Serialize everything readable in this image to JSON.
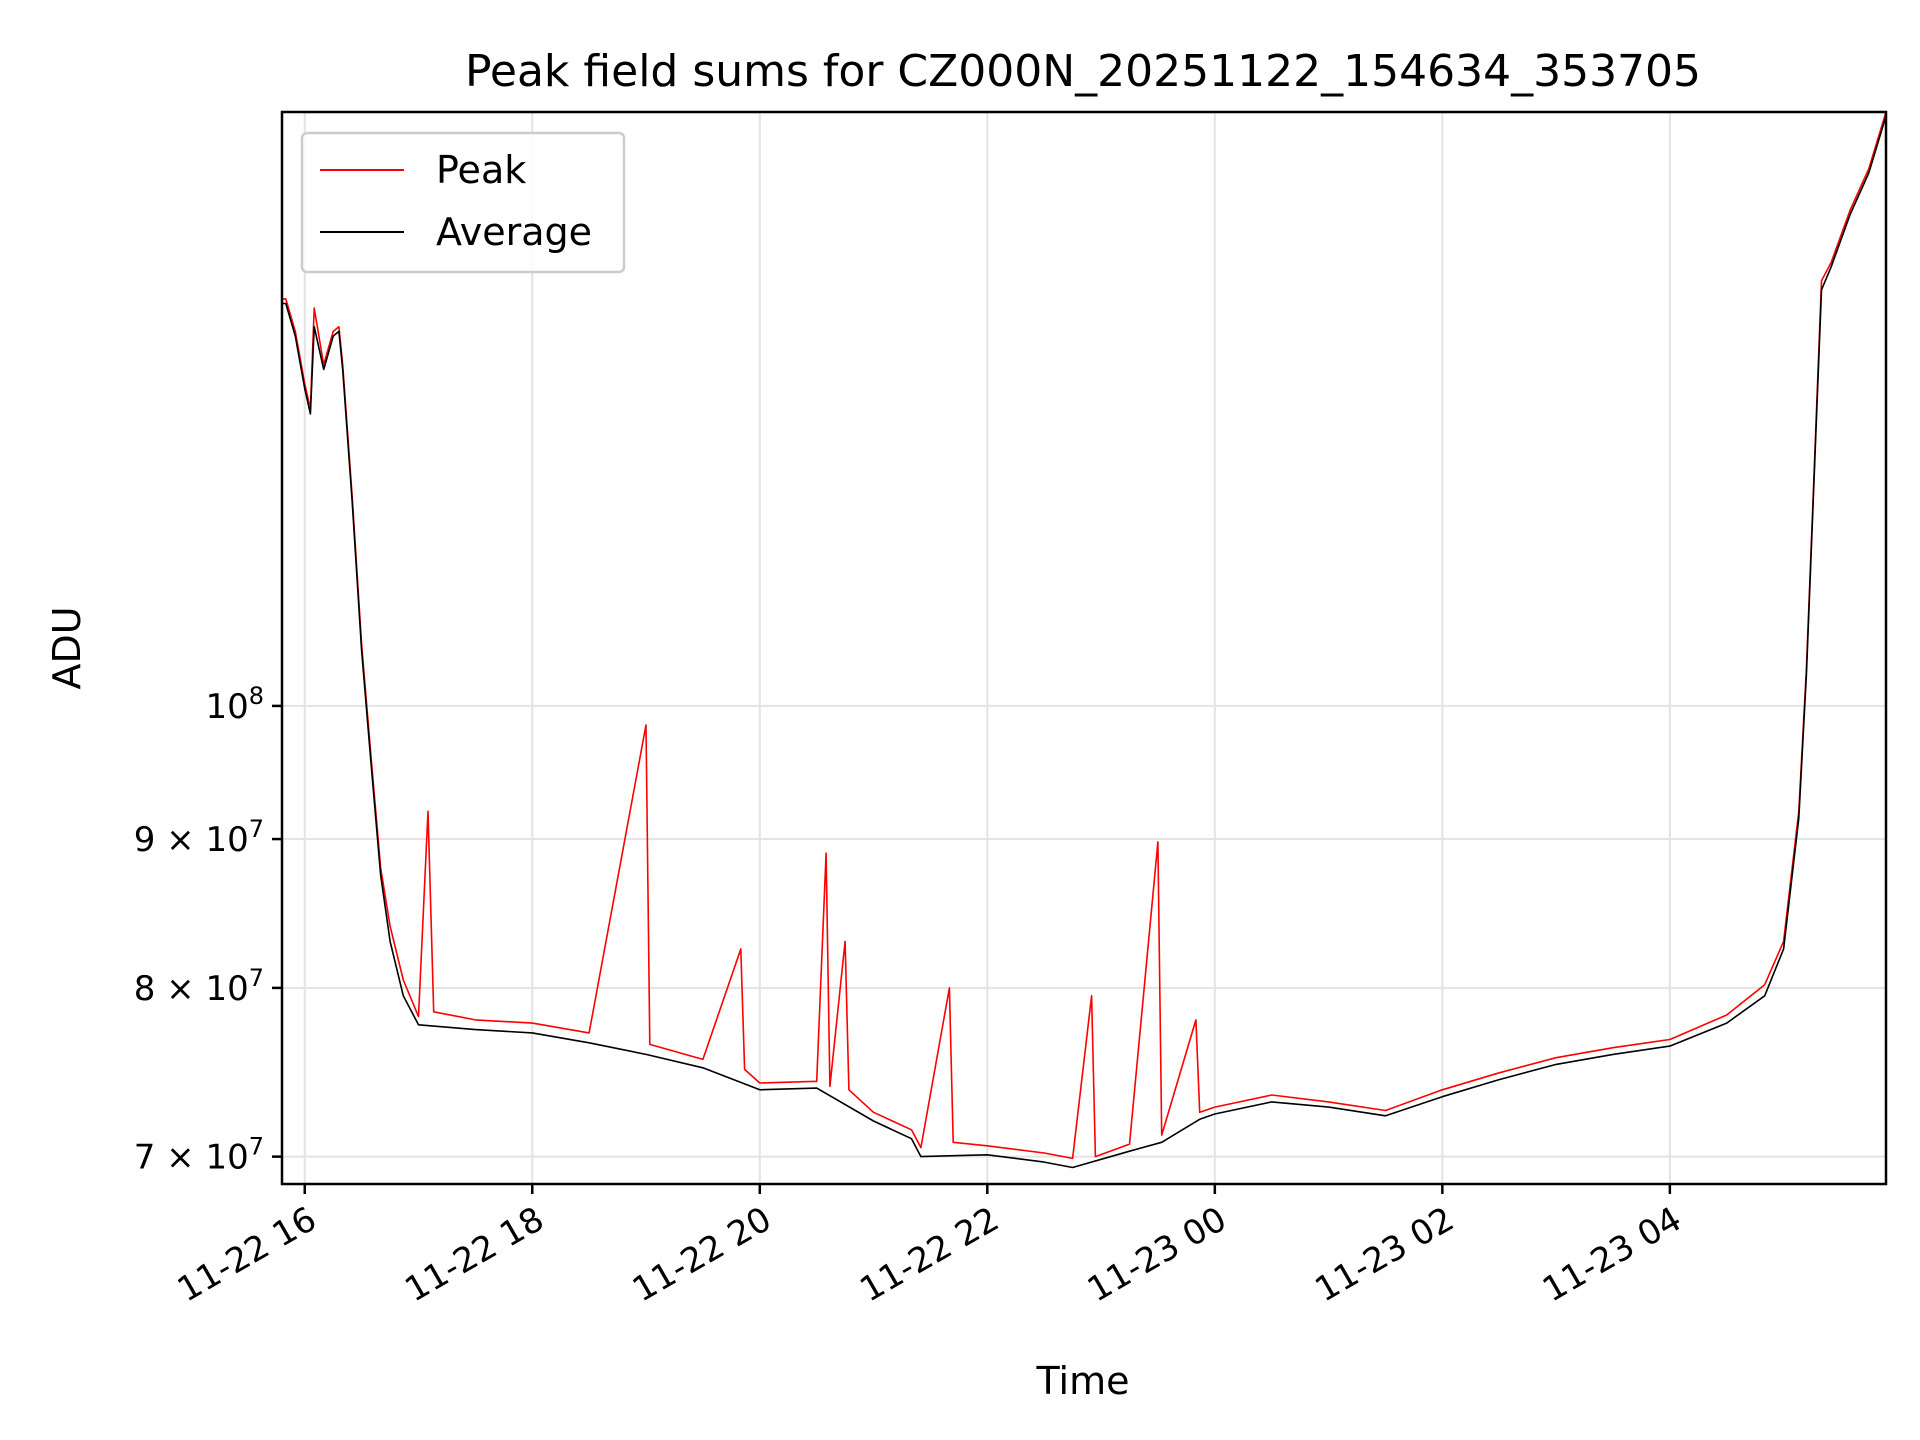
{
  "chart_data": {
    "type": "line",
    "title": "Peak field sums for CZ000N_20251122_154634_353705",
    "xlabel": "Time",
    "ylabel": "ADU",
    "yscale": "log",
    "grid": true,
    "legend_position": "top-left",
    "x_axis_type": "datetime",
    "xlim": [
      "2025-11-22 15:48",
      "2025-11-23 05:54"
    ],
    "ylim": [
      68500000,
      160000000
    ],
    "x_ticks": [
      {
        "value": "2025-11-22 16:00",
        "label": "11-22 16"
      },
      {
        "value": "2025-11-22 18:00",
        "label": "11-22 18"
      },
      {
        "value": "2025-11-22 20:00",
        "label": "11-22 20"
      },
      {
        "value": "2025-11-22 22:00",
        "label": "11-22 22"
      },
      {
        "value": "2025-11-23 00:00",
        "label": "11-23 00"
      },
      {
        "value": "2025-11-23 02:00",
        "label": "11-23 02"
      },
      {
        "value": "2025-11-23 04:00",
        "label": "11-23 04"
      }
    ],
    "y_ticks": [
      {
        "value": 70000000,
        "base": "7 × 10",
        "exp": "7"
      },
      {
        "value": 80000000,
        "base": "8 × 10",
        "exp": "7"
      },
      {
        "value": 90000000,
        "base": "9 × 10",
        "exp": "7"
      },
      {
        "value": 100000000,
        "base": "10",
        "exp": "8"
      }
    ],
    "series": [
      {
        "name": "Peak",
        "color": "#ff0000",
        "points": [
          [
            "2025-11-22 15:48",
            138000000
          ],
          [
            "2025-11-22 15:50",
            138000000
          ],
          [
            "2025-11-22 15:55",
            134500000
          ],
          [
            "2025-11-22 16:00",
            129000000
          ],
          [
            "2025-11-22 16:03",
            126500000
          ],
          [
            "2025-11-22 16:05",
            137000000
          ],
          [
            "2025-11-22 16:10",
            131000000
          ],
          [
            "2025-11-22 16:15",
            134500000
          ],
          [
            "2025-11-22 16:18",
            135000000
          ],
          [
            "2025-11-22 16:20",
            131000000
          ],
          [
            "2025-11-22 16:25",
            118000000
          ],
          [
            "2025-11-22 16:30",
            105000000
          ],
          [
            "2025-11-22 16:35",
            96000000
          ],
          [
            "2025-11-22 16:40",
            88000000
          ],
          [
            "2025-11-22 16:45",
            84000000
          ],
          [
            "2025-11-22 16:52",
            80500000
          ],
          [
            "2025-11-22 17:00",
            78200000
          ],
          [
            "2025-11-22 17:05",
            92000000
          ],
          [
            "2025-11-22 17:08",
            78500000
          ],
          [
            "2025-11-22 17:30",
            78000000
          ],
          [
            "2025-11-22 18:00",
            77800000
          ],
          [
            "2025-11-22 18:30",
            77200000
          ],
          [
            "2025-11-22 19:00",
            98500000
          ],
          [
            "2025-11-22 19:02",
            76500000
          ],
          [
            "2025-11-22 19:30",
            75600000
          ],
          [
            "2025-11-22 19:50",
            82500000
          ],
          [
            "2025-11-22 19:52",
            75000000
          ],
          [
            "2025-11-22 20:00",
            74200000
          ],
          [
            "2025-11-22 20:30",
            74300000
          ],
          [
            "2025-11-22 20:35",
            89000000
          ],
          [
            "2025-11-22 20:37",
            74000000
          ],
          [
            "2025-11-22 20:45",
            83000000
          ],
          [
            "2025-11-22 20:47",
            73800000
          ],
          [
            "2025-11-22 21:00",
            72500000
          ],
          [
            "2025-11-22 21:20",
            71500000
          ],
          [
            "2025-11-22 21:25",
            70500000
          ],
          [
            "2025-11-22 21:40",
            80000000
          ],
          [
            "2025-11-22 21:42",
            70800000
          ],
          [
            "2025-11-22 22:00",
            70600000
          ],
          [
            "2025-11-22 22:30",
            70200000
          ],
          [
            "2025-11-22 22:45",
            69900000
          ],
          [
            "2025-11-22 22:55",
            79500000
          ],
          [
            "2025-11-22 22:57",
            70000000
          ],
          [
            "2025-11-22 23:15",
            70700000
          ],
          [
            "2025-11-22 23:30",
            89800000
          ],
          [
            "2025-11-22 23:32",
            71200000
          ],
          [
            "2025-11-22 23:50",
            78000000
          ],
          [
            "2025-11-22 23:52",
            72500000
          ],
          [
            "2025-11-23 00:00",
            72800000
          ],
          [
            "2025-11-23 00:30",
            73500000
          ],
          [
            "2025-11-23 01:00",
            73100000
          ],
          [
            "2025-11-23 01:30",
            72600000
          ],
          [
            "2025-11-23 02:00",
            73800000
          ],
          [
            "2025-11-23 02:30",
            74800000
          ],
          [
            "2025-11-23 03:00",
            75700000
          ],
          [
            "2025-11-23 03:30",
            76300000
          ],
          [
            "2025-11-23 04:00",
            76800000
          ],
          [
            "2025-11-23 04:30",
            78300000
          ],
          [
            "2025-11-23 04:50",
            80200000
          ],
          [
            "2025-11-23 05:00",
            83000000
          ],
          [
            "2025-11-23 05:08",
            92000000
          ],
          [
            "2025-11-23 05:12",
            103000000
          ],
          [
            "2025-11-23 05:16",
            120000000
          ],
          [
            "2025-11-23 05:20",
            140000000
          ],
          [
            "2025-11-23 05:25",
            142000000
          ],
          [
            "2025-11-23 05:35",
            148000000
          ],
          [
            "2025-11-23 05:45",
            153000000
          ],
          [
            "2025-11-23 05:54",
            160000000
          ]
        ]
      },
      {
        "name": "Average",
        "color": "#000000",
        "points": [
          [
            "2025-11-22 15:48",
            137500000
          ],
          [
            "2025-11-22 15:50",
            137500000
          ],
          [
            "2025-11-22 15:55",
            134000000
          ],
          [
            "2025-11-22 16:00",
            128500000
          ],
          [
            "2025-11-22 16:03",
            126000000
          ],
          [
            "2025-11-22 16:05",
            135000000
          ],
          [
            "2025-11-22 16:10",
            130500000
          ],
          [
            "2025-11-22 16:15",
            134000000
          ],
          [
            "2025-11-22 16:18",
            134500000
          ],
          [
            "2025-11-22 16:20",
            130500000
          ],
          [
            "2025-11-22 16:25",
            117500000
          ],
          [
            "2025-11-22 16:30",
            104500000
          ],
          [
            "2025-11-22 16:35",
            95500000
          ],
          [
            "2025-11-22 16:40",
            87500000
          ],
          [
            "2025-11-22 16:45",
            83000000
          ],
          [
            "2025-11-22 16:52",
            79500000
          ],
          [
            "2025-11-22 17:00",
            77700000
          ],
          [
            "2025-11-22 17:30",
            77400000
          ],
          [
            "2025-11-22 18:00",
            77200000
          ],
          [
            "2025-11-22 18:30",
            76600000
          ],
          [
            "2025-11-22 19:00",
            75900000
          ],
          [
            "2025-11-22 19:30",
            75100000
          ],
          [
            "2025-11-22 20:00",
            73800000
          ],
          [
            "2025-11-22 20:30",
            73900000
          ],
          [
            "2025-11-22 21:00",
            72000000
          ],
          [
            "2025-11-22 21:20",
            71000000
          ],
          [
            "2025-11-22 21:25",
            70000000
          ],
          [
            "2025-11-22 22:00",
            70100000
          ],
          [
            "2025-11-22 22:30",
            69700000
          ],
          [
            "2025-11-22 22:45",
            69400000
          ],
          [
            "2025-11-22 23:15",
            70300000
          ],
          [
            "2025-11-22 23:32",
            70800000
          ],
          [
            "2025-11-22 23:52",
            72100000
          ],
          [
            "2025-11-23 00:00",
            72400000
          ],
          [
            "2025-11-23 00:30",
            73100000
          ],
          [
            "2025-11-23 01:00",
            72800000
          ],
          [
            "2025-11-23 01:30",
            72300000
          ],
          [
            "2025-11-23 02:00",
            73400000
          ],
          [
            "2025-11-23 02:30",
            74400000
          ],
          [
            "2025-11-23 03:00",
            75300000
          ],
          [
            "2025-11-23 03:30",
            75900000
          ],
          [
            "2025-11-23 04:00",
            76400000
          ],
          [
            "2025-11-23 04:30",
            77800000
          ],
          [
            "2025-11-23 04:50",
            79500000
          ],
          [
            "2025-11-23 05:00",
            82500000
          ],
          [
            "2025-11-23 05:08",
            91500000
          ],
          [
            "2025-11-23 05:12",
            102500000
          ],
          [
            "2025-11-23 05:16",
            119500000
          ],
          [
            "2025-11-23 05:20",
            139000000
          ],
          [
            "2025-11-23 05:25",
            141500000
          ],
          [
            "2025-11-23 05:35",
            147500000
          ],
          [
            "2025-11-23 05:45",
            152500000
          ],
          [
            "2025-11-23 05:54",
            159500000
          ]
        ]
      }
    ]
  }
}
